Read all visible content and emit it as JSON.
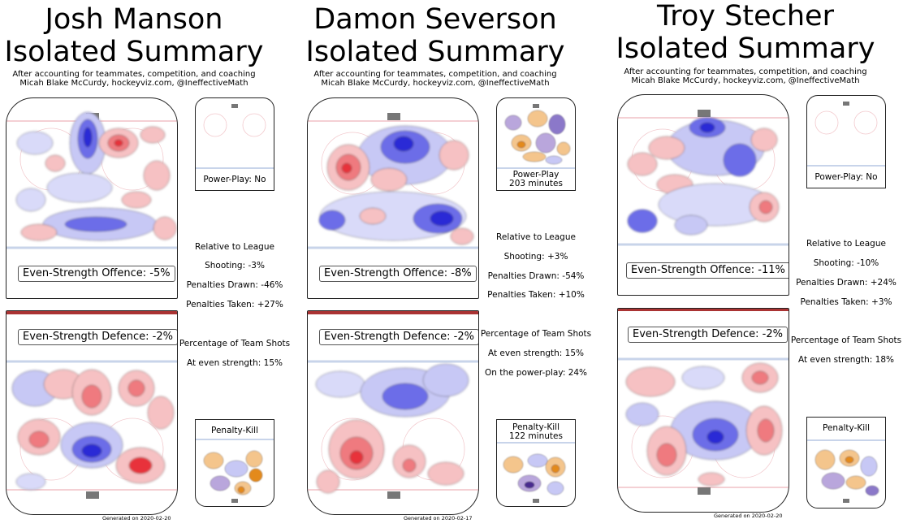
{
  "panels": [
    {
      "title_line1": "Josh Manson",
      "title_line2": "Isolated Summary",
      "subtitle_line1": "After accounting for teammates, competition, and coaching",
      "subtitle_line2": "Micah Blake McCurdy, hockeyviz.com, @IneffectiveMath",
      "offence_label": "Even-Strength Offence: -5%",
      "defence_label": "Even-Strength Defence: -2%",
      "pp_label": "Power-Play: No",
      "pp_minutes": "",
      "pk_label": "Penalty-Kill",
      "pk_minutes": "",
      "stats_heading": "Relative to League",
      "shooting": "Shooting: -3%",
      "penalties_drawn": "Penalties Drawn: -46%",
      "penalties_taken": "Penalties Taken: +27%",
      "team_shots_heading": "Percentage of Team Shots",
      "even_strength_share": "At even strength: 15%",
      "power_play_share": "",
      "generated": "Generated on 2020-02-20"
    },
    {
      "title_line1": "Damon Severson",
      "title_line2": "Isolated Summary",
      "subtitle_line1": "After accounting for teammates, competition, and coaching",
      "subtitle_line2": "Micah Blake McCurdy, hockeyviz.com, @IneffectiveMath",
      "offence_label": "Even-Strength Offence: -8%",
      "defence_label": "Even-Strength Defence: -2%",
      "pp_label": "Power-Play",
      "pp_minutes": "203 minutes",
      "pk_label": "Penalty-Kill",
      "pk_minutes": "122 minutes",
      "stats_heading": "Relative to League",
      "shooting": "Shooting: +3%",
      "penalties_drawn": "Penalties Drawn: -54%",
      "penalties_taken": "Penalties Taken: +10%",
      "team_shots_heading": "Percentage of Team Shots",
      "even_strength_share": "At even strength: 15%",
      "power_play_share": "On the power-play: 24%",
      "generated": "Generated on 2020-02-17"
    },
    {
      "title_line1": "Troy Stecher",
      "title_line2": "Isolated Summary",
      "subtitle_line1": "After accounting for teammates, competition, and coaching",
      "subtitle_line2": "Micah Blake McCurdy, hockeyviz.com, @IneffectiveMath",
      "offence_label": "Even-Strength Offence: -11%",
      "defence_label": "Even-Strength Defence: -2%",
      "pp_label": "Power-Play: No",
      "pp_minutes": "",
      "pk_label": "Penalty-Kill",
      "pk_minutes": "",
      "stats_heading": "Relative to League",
      "shooting": "Shooting: -10%",
      "penalties_drawn": "Penalties Drawn: +24%",
      "penalties_taken": "Penalties Taken: +3%",
      "team_shots_heading": "Percentage of Team Shots",
      "even_strength_share": "At even strength: 18%",
      "power_play_share": "",
      "generated": "Generated on 2020-02-20"
    }
  ],
  "colors": {
    "more_shots": "#e8313a",
    "fewer_shots": "#2b2bd6",
    "pp_more": "#e38a1e",
    "pp_fewer": "#4a2a8f",
    "rink_line": "#c8d4ea",
    "goal_line": "#e8a0a8",
    "net": "#777777"
  }
}
